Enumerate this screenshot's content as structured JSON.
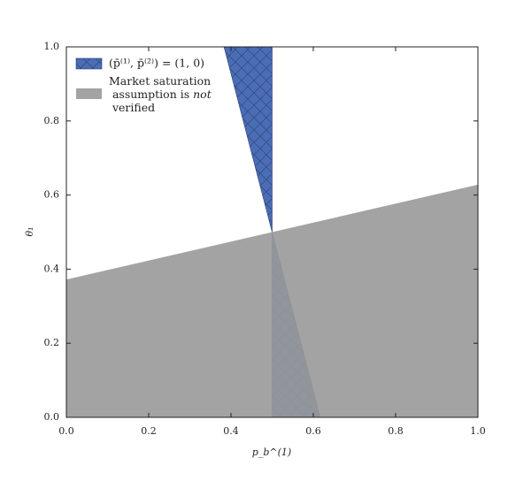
{
  "chart_data": {
    "type": "area",
    "x_label": "p_b^(1)",
    "y_label": "θ₁",
    "xlim": [
      0,
      1
    ],
    "ylim": [
      0,
      1
    ],
    "xticks": [
      {
        "value": 0,
        "label": "0.0"
      },
      0.2,
      0.4,
      0.6,
      0.8,
      {
        "value": 1,
        "label": "1.0"
      }
    ],
    "yticks": [
      {
        "value": 0,
        "label": "0.0"
      },
      0.2,
      0.4,
      0.6,
      0.8,
      {
        "value": 1,
        "label": "1.0"
      }
    ],
    "legend": "upper left",
    "series": [
      {
        "name": "(p̄⁽¹⁾, p̄⁽²⁾) = (1, 0)",
        "color": "#4a6db5",
        "hatch": true,
        "x": [
          0.383,
          0.5,
          0.5,
          0.617
        ],
        "y": [
          1,
          1,
          0,
          0
        ]
      },
      {
        "name": "Market saturation assumption is not verified",
        "color": "#999999",
        "hatch": false,
        "x": [
          0,
          1,
          1,
          0
        ],
        "y": [
          0.372,
          0.628,
          0,
          0
        ]
      }
    ]
  }
}
